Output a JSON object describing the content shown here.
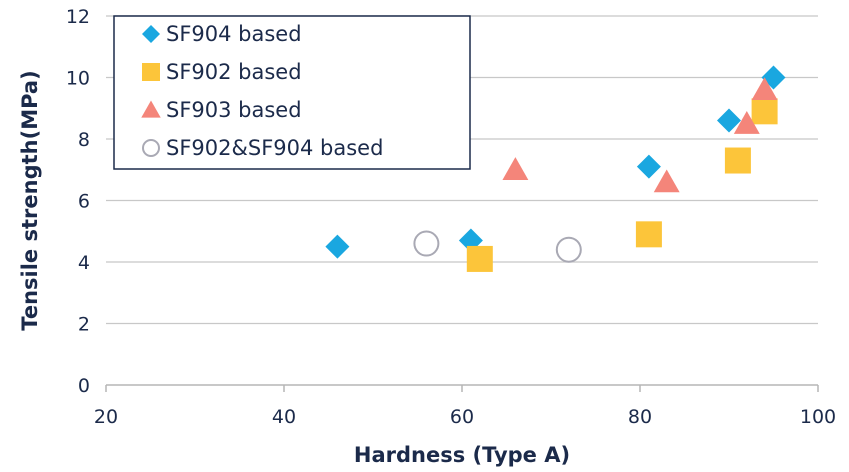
{
  "chart_data": {
    "type": "scatter",
    "title": "",
    "xlabel": "Hardness (Type A)",
    "ylabel": "Tensile strength(MPa)",
    "xlim": [
      20,
      100
    ],
    "ylim": [
      0,
      12
    ],
    "xticks": [
      20,
      40,
      60,
      80,
      100
    ],
    "yticks": [
      0,
      2,
      4,
      6,
      8,
      10,
      12
    ],
    "grid": "horizontal",
    "legend": "top-left",
    "series": [
      {
        "name": "SF904 based",
        "marker": "diamond",
        "color": "#1aa7e0",
        "points": [
          {
            "x": 46,
            "y": 4.5
          },
          {
            "x": 61,
            "y": 4.7
          },
          {
            "x": 81,
            "y": 7.1
          },
          {
            "x": 90,
            "y": 8.6
          },
          {
            "x": 95,
            "y": 10.0
          }
        ]
      },
      {
        "name": "SF902 based",
        "marker": "square",
        "color": "#fcc53a",
        "points": [
          {
            "x": 62,
            "y": 4.1
          },
          {
            "x": 81,
            "y": 4.9
          },
          {
            "x": 91,
            "y": 7.3
          },
          {
            "x": 94,
            "y": 8.9
          }
        ]
      },
      {
        "name": "SF903 based",
        "marker": "triangle",
        "color": "#f4857a",
        "points": [
          {
            "x": 66,
            "y": 7.0
          },
          {
            "x": 83,
            "y": 6.6
          },
          {
            "x": 92,
            "y": 8.5
          },
          {
            "x": 94,
            "y": 9.6
          }
        ]
      },
      {
        "name": "SF902&SF904 based",
        "marker": "circle-open",
        "color": "#a9a9b4",
        "points": [
          {
            "x": 56,
            "y": 4.6
          },
          {
            "x": 72,
            "y": 4.4
          }
        ]
      }
    ]
  }
}
